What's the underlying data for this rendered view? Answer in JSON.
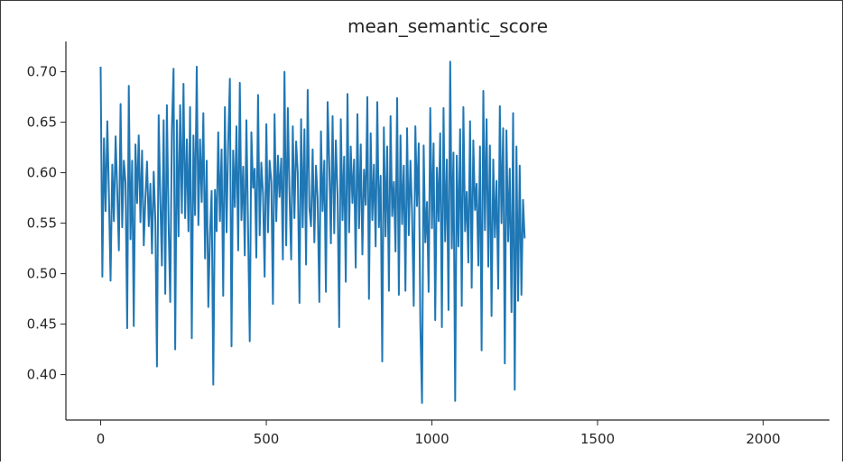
{
  "chart_data": {
    "type": "line",
    "title": "mean_semantic_score",
    "xlabel": "",
    "ylabel": "",
    "xlim": [
      -105,
      2200
    ],
    "ylim": [
      0.355,
      0.73
    ],
    "x_ticks": [
      0,
      500,
      1000,
      1500,
      2000
    ],
    "y_ticks": [
      0.4,
      0.45,
      0.5,
      0.55,
      0.6,
      0.65,
      0.7
    ],
    "x_tick_labels": [
      "0",
      "500",
      "1000",
      "1500",
      "2000"
    ],
    "y_tick_labels": [
      "0.40",
      "0.45",
      "0.50",
      "0.55",
      "0.60",
      "0.65",
      "0.70"
    ],
    "spines": "left-bottom",
    "grid": false,
    "series": [
      {
        "color": "#1f77b4",
        "x_start": 0,
        "x_step": 5,
        "values": [
          0.705,
          0.497,
          0.634,
          0.562,
          0.651,
          0.578,
          0.493,
          0.608,
          0.552,
          0.636,
          0.581,
          0.523,
          0.668,
          0.546,
          0.612,
          0.59,
          0.446,
          0.686,
          0.534,
          0.612,
          0.448,
          0.628,
          0.57,
          0.637,
          0.551,
          0.622,
          0.528,
          0.575,
          0.611,
          0.547,
          0.589,
          0.52,
          0.601,
          0.553,
          0.408,
          0.657,
          0.575,
          0.508,
          0.652,
          0.48,
          0.667,
          0.549,
          0.472,
          0.642,
          0.703,
          0.425,
          0.652,
          0.537,
          0.667,
          0.56,
          0.688,
          0.555,
          0.633,
          0.542,
          0.665,
          0.436,
          0.637,
          0.558,
          0.705,
          0.548,
          0.633,
          0.571,
          0.659,
          0.515,
          0.612,
          0.467,
          0.54,
          0.582,
          0.39,
          0.583,
          0.542,
          0.64,
          0.552,
          0.623,
          0.478,
          0.665,
          0.541,
          0.629,
          0.693,
          0.428,
          0.622,
          0.566,
          0.646,
          0.523,
          0.689,
          0.553,
          0.606,
          0.518,
          0.652,
          0.542,
          0.433,
          0.64,
          0.585,
          0.604,
          0.516,
          0.677,
          0.538,
          0.61,
          0.579,
          0.497,
          0.648,
          0.541,
          0.612,
          0.591,
          0.47,
          0.658,
          0.552,
          0.617,
          0.576,
          0.614,
          0.514,
          0.7,
          0.528,
          0.664,
          0.581,
          0.514,
          0.646,
          0.555,
          0.631,
          0.6,
          0.471,
          0.653,
          0.546,
          0.643,
          0.509,
          0.682,
          0.565,
          0.547,
          0.623,
          0.531,
          0.607,
          0.575,
          0.472,
          0.641,
          0.562,
          0.612,
          0.482,
          0.67,
          0.61,
          0.53,
          0.656,
          0.54,
          0.632,
          0.578,
          0.447,
          0.653,
          0.553,
          0.616,
          0.492,
          0.678,
          0.541,
          0.626,
          0.57,
          0.613,
          0.506,
          0.658,
          0.545,
          0.628,
          0.519,
          0.603,
          0.568,
          0.675,
          0.475,
          0.639,
          0.553,
          0.608,
          0.527,
          0.67,
          0.546,
          0.597,
          0.413,
          0.645,
          0.537,
          0.626,
          0.483,
          0.656,
          0.557,
          0.591,
          0.522,
          0.674,
          0.479,
          0.637,
          0.549,
          0.607,
          0.483,
          0.644,
          0.538,
          0.612,
          0.562,
          0.468,
          0.646,
          0.567,
          0.629,
          0.451,
          0.372,
          0.627,
          0.531,
          0.571,
          0.482,
          0.664,
          0.545,
          0.629,
          0.454,
          0.605,
          0.552,
          0.639,
          0.447,
          0.664,
          0.532,
          0.613,
          0.464,
          0.71,
          0.525,
          0.62,
          0.374,
          0.617,
          0.527,
          0.643,
          0.468,
          0.665,
          0.542,
          0.581,
          0.511,
          0.651,
          0.486,
          0.632,
          0.563,
          0.589,
          0.508,
          0.626,
          0.424,
          0.681,
          0.543,
          0.653,
          0.507,
          0.627,
          0.458,
          0.613,
          0.536,
          0.592,
          0.485,
          0.666,
          0.55,
          0.644,
          0.411,
          0.642,
          0.532,
          0.604,
          0.462,
          0.659,
          0.385,
          0.626,
          0.473,
          0.607,
          0.479,
          0.573,
          0.535
        ]
      }
    ]
  }
}
